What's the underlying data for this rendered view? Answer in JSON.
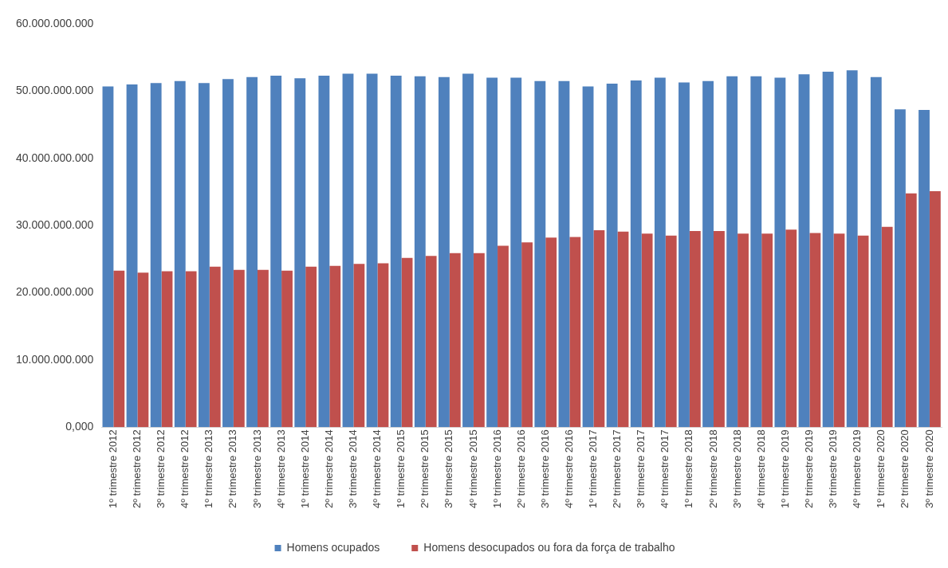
{
  "chart_data": {
    "type": "bar",
    "categories": [
      "1º trimestre 2012",
      "2º trimestre 2012",
      "3º trimestre 2012",
      "4º trimestre 2012",
      "1º trimestre 2013",
      "2º trimestre 2013",
      "3º trimestre 2013",
      "4º trimestre 2013",
      "1º trimestre 2014",
      "2º trimestre 2014",
      "3º trimestre 2014",
      "4º trimestre 2014",
      "1º trimestre 2015",
      "2º trimestre 2015",
      "3º trimestre 2015",
      "4º trimestre 2015",
      "1º trimestre 2016",
      "2º trimestre 2016",
      "3º trimestre 2016",
      "4º trimestre 2016",
      "1º trimestre 2017",
      "2º trimestre 2017",
      "3º trimestre 2017",
      "4º trimestre 2017",
      "1º trimestre 2018",
      "2º trimestre 2018",
      "3º trimestre 2018",
      "4º trimestre 2018",
      "1º trimestre 2019",
      "2º trimestre 2019",
      "3º trimestre 2019",
      "4º trimestre 2019",
      "1º trimestre 2020",
      "2º trimestre 2020",
      "3º trimestre 2020"
    ],
    "series": [
      {
        "name": "Homens ocupados",
        "color": "#4f81bd",
        "values": [
          50700000000,
          51000000000,
          51200000000,
          51500000000,
          51200000000,
          51800000000,
          52100000000,
          52300000000,
          51900000000,
          52300000000,
          52600000000,
          52600000000,
          52300000000,
          52200000000,
          52100000000,
          52600000000,
          52000000000,
          52000000000,
          51500000000,
          51500000000,
          50700000000,
          51100000000,
          51600000000,
          52000000000,
          51300000000,
          51500000000,
          52200000000,
          52200000000,
          52000000000,
          52500000000,
          52900000000,
          53100000000,
          52100000000,
          47300000000,
          47200000000
        ]
      },
      {
        "name": "Homens desocupados ou fora da força de trabalho",
        "color": "#c0504d",
        "values": [
          23300000000,
          23000000000,
          23200000000,
          23200000000,
          23900000000,
          23400000000,
          23400000000,
          23300000000,
          23900000000,
          24000000000,
          24300000000,
          24400000000,
          25200000000,
          25500000000,
          25900000000,
          25900000000,
          27000000000,
          27500000000,
          28200000000,
          28300000000,
          29300000000,
          29100000000,
          28800000000,
          28500000000,
          29200000000,
          29200000000,
          28800000000,
          28800000000,
          29400000000,
          28900000000,
          28800000000,
          28500000000,
          29800000000,
          34800000000,
          35100000000
        ]
      }
    ],
    "ylim": [
      0,
      60000000000
    ],
    "yticks": [
      {
        "value": 0,
        "label": "0,000"
      },
      {
        "value": 10000000000,
        "label": "10.000.000.000"
      },
      {
        "value": 20000000000,
        "label": "20.000.000.000"
      },
      {
        "value": 30000000000,
        "label": "30.000.000.000"
      },
      {
        "value": 40000000000,
        "label": "40.000.000.000"
      },
      {
        "value": 50000000000,
        "label": "50.000.000.000"
      },
      {
        "value": 60000000000,
        "label": "60.000.000.000"
      }
    ],
    "grid": false,
    "legend": "bottom"
  }
}
